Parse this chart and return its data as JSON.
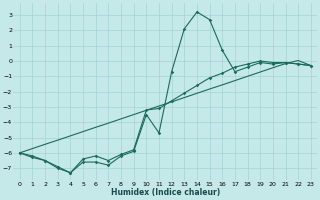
{
  "xlabel": "Humidex (Indice chaleur)",
  "xlim": [
    -0.5,
    23.5
  ],
  "ylim": [
    -7.8,
    3.8
  ],
  "yticks": [
    3,
    2,
    1,
    0,
    -1,
    -2,
    -3,
    -4,
    -5,
    -6,
    -7
  ],
  "xticks": [
    0,
    1,
    2,
    3,
    4,
    5,
    6,
    7,
    8,
    9,
    10,
    11,
    12,
    13,
    14,
    15,
    16,
    17,
    18,
    19,
    20,
    21,
    22,
    23
  ],
  "background_color": "#c5e8e8",
  "grid_color": "#9ecece",
  "line_color": "#1a6b5a",
  "line1_x": [
    0,
    1,
    2,
    3,
    4,
    5,
    6,
    7,
    8,
    9,
    10,
    11,
    12,
    13,
    14,
    15,
    16,
    17,
    18,
    19,
    20,
    21,
    22,
    23
  ],
  "line1_y": [
    -6.0,
    -6.3,
    -6.5,
    -6.9,
    -7.3,
    -6.4,
    -6.2,
    -6.5,
    -6.1,
    -5.8,
    -3.2,
    -3.1,
    -2.6,
    -2.1,
    -1.6,
    -1.1,
    -0.8,
    -0.4,
    -0.2,
    0.0,
    -0.1,
    -0.1,
    -0.2,
    -0.3
  ],
  "line2_x": [
    0,
    1,
    2,
    3,
    4,
    5,
    6,
    7,
    8,
    9,
    10,
    11,
    12,
    13,
    14,
    15,
    16,
    17,
    18,
    19,
    20,
    21,
    22,
    23
  ],
  "line2_y": [
    -6.0,
    -6.2,
    -6.5,
    -7.0,
    -7.3,
    -6.6,
    -6.6,
    -6.8,
    -6.2,
    -5.9,
    -3.5,
    -4.7,
    -0.7,
    2.1,
    3.2,
    2.7,
    0.7,
    -0.7,
    -0.4,
    -0.1,
    -0.2,
    -0.1,
    -0.2,
    -0.3
  ],
  "line3_x": [
    0,
    1,
    2,
    3,
    4,
    5,
    6,
    7,
    8,
    9,
    10,
    11,
    12,
    13,
    14,
    15,
    16,
    17,
    18,
    19,
    20,
    21,
    22,
    23
  ],
  "line3_y": [
    -6.0,
    -5.72,
    -5.44,
    -5.17,
    -4.89,
    -4.61,
    -4.33,
    -4.06,
    -3.78,
    -3.5,
    -3.22,
    -2.94,
    -2.67,
    -2.39,
    -2.11,
    -1.83,
    -1.56,
    -1.28,
    -1.0,
    -0.72,
    -0.44,
    -0.17,
    0.03,
    -0.3
  ],
  "marker": "D",
  "markersize": 1.8,
  "linewidth": 0.8,
  "tick_fontsize": 4.5,
  "xlabel_fontsize": 5.5
}
